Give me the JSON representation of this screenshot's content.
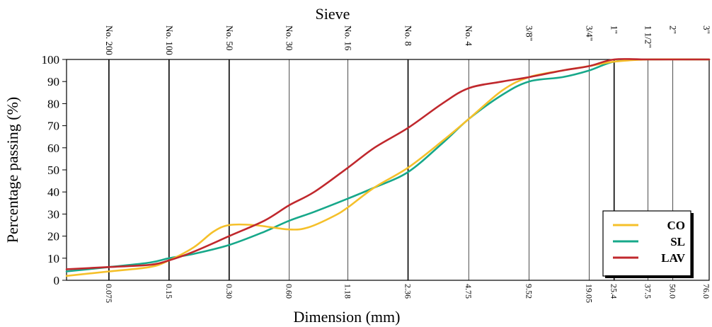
{
  "chart_data": {
    "type": "line",
    "title": "Sieve",
    "xlabel": "Dimension (mm)",
    "ylabel": "Percentage passing (%)",
    "x_scale": "log",
    "xlim": [
      0.046,
      76.0
    ],
    "ylim": [
      0,
      100
    ],
    "yticks": [
      0,
      10,
      20,
      30,
      40,
      50,
      60,
      70,
      80,
      90,
      100
    ],
    "grid": false,
    "legend_position": "bottom-right",
    "sieves": [
      {
        "name": "No. 200",
        "size": 0.075,
        "size_label": "0.075",
        "line": "thick"
      },
      {
        "name": "No. 100",
        "size": 0.15,
        "size_label": "0.15",
        "line": "thick"
      },
      {
        "name": "No. 50",
        "size": 0.3,
        "size_label": "0.30",
        "line": "thick"
      },
      {
        "name": "No. 30",
        "size": 0.6,
        "size_label": "0.60",
        "line": "thin"
      },
      {
        "name": "No. 16",
        "size": 1.18,
        "size_label": "1.18",
        "line": "thin"
      },
      {
        "name": "No. 8",
        "size": 2.36,
        "size_label": "2.36",
        "line": "thick"
      },
      {
        "name": "No. 4",
        "size": 4.75,
        "size_label": "4.75",
        "line": "thin"
      },
      {
        "name": "3/8\"",
        "size": 9.52,
        "size_label": "9.52",
        "line": "thin"
      },
      {
        "name": "3/4\"",
        "size": 19.05,
        "size_label": "19.05",
        "line": "thin"
      },
      {
        "name": "1\"",
        "size": 25.4,
        "size_label": "25.4",
        "line": "thick"
      },
      {
        "name": "1 1/2\"",
        "size": 37.5,
        "size_label": "37.5",
        "line": "thin"
      },
      {
        "name": "2\"",
        "size": 50.0,
        "size_label": "50.0",
        "line": "thin"
      },
      {
        "name": "3\"",
        "size": 76.0,
        "size_label": "76.0",
        "line": "none"
      }
    ],
    "series": [
      {
        "name": "CO",
        "color": "#f5c02a",
        "points": [
          [
            0.046,
            2
          ],
          [
            0.075,
            4
          ],
          [
            0.12,
            6
          ],
          [
            0.15,
            9
          ],
          [
            0.2,
            15
          ],
          [
            0.25,
            22
          ],
          [
            0.3,
            25
          ],
          [
            0.4,
            25
          ],
          [
            0.6,
            23
          ],
          [
            0.75,
            24
          ],
          [
            1.0,
            29
          ],
          [
            1.18,
            33
          ],
          [
            1.6,
            42
          ],
          [
            2.36,
            51
          ],
          [
            3.5,
            63
          ],
          [
            4.75,
            73
          ],
          [
            7.0,
            86
          ],
          [
            9.52,
            92
          ],
          [
            14.0,
            95
          ],
          [
            19.05,
            97
          ],
          [
            25.4,
            99
          ],
          [
            37.5,
            100
          ],
          [
            76.0,
            100
          ]
        ]
      },
      {
        "name": "SL",
        "color": "#17a88a",
        "points": [
          [
            0.046,
            4
          ],
          [
            0.075,
            6
          ],
          [
            0.12,
            8
          ],
          [
            0.15,
            10
          ],
          [
            0.2,
            12
          ],
          [
            0.3,
            16
          ],
          [
            0.45,
            22
          ],
          [
            0.6,
            27
          ],
          [
            0.8,
            31
          ],
          [
            1.18,
            37
          ],
          [
            1.6,
            42
          ],
          [
            2.36,
            49
          ],
          [
            3.5,
            62
          ],
          [
            4.75,
            73
          ],
          [
            7.0,
            84
          ],
          [
            9.52,
            90
          ],
          [
            14.0,
            92
          ],
          [
            19.05,
            95
          ],
          [
            25.4,
            99
          ],
          [
            37.5,
            100
          ],
          [
            76.0,
            100
          ]
        ]
      },
      {
        "name": "LAV",
        "color": "#c0282d",
        "points": [
          [
            0.046,
            5
          ],
          [
            0.075,
            6
          ],
          [
            0.12,
            7
          ],
          [
            0.15,
            9
          ],
          [
            0.2,
            13
          ],
          [
            0.3,
            20
          ],
          [
            0.45,
            27
          ],
          [
            0.6,
            34
          ],
          [
            0.8,
            40
          ],
          [
            1.18,
            51
          ],
          [
            1.6,
            60
          ],
          [
            2.36,
            69
          ],
          [
            3.5,
            80
          ],
          [
            4.75,
            87
          ],
          [
            7.0,
            90
          ],
          [
            9.52,
            92
          ],
          [
            14.0,
            95
          ],
          [
            19.05,
            97
          ],
          [
            25.4,
            100
          ],
          [
            37.5,
            100
          ],
          [
            76.0,
            100
          ]
        ]
      }
    ]
  }
}
